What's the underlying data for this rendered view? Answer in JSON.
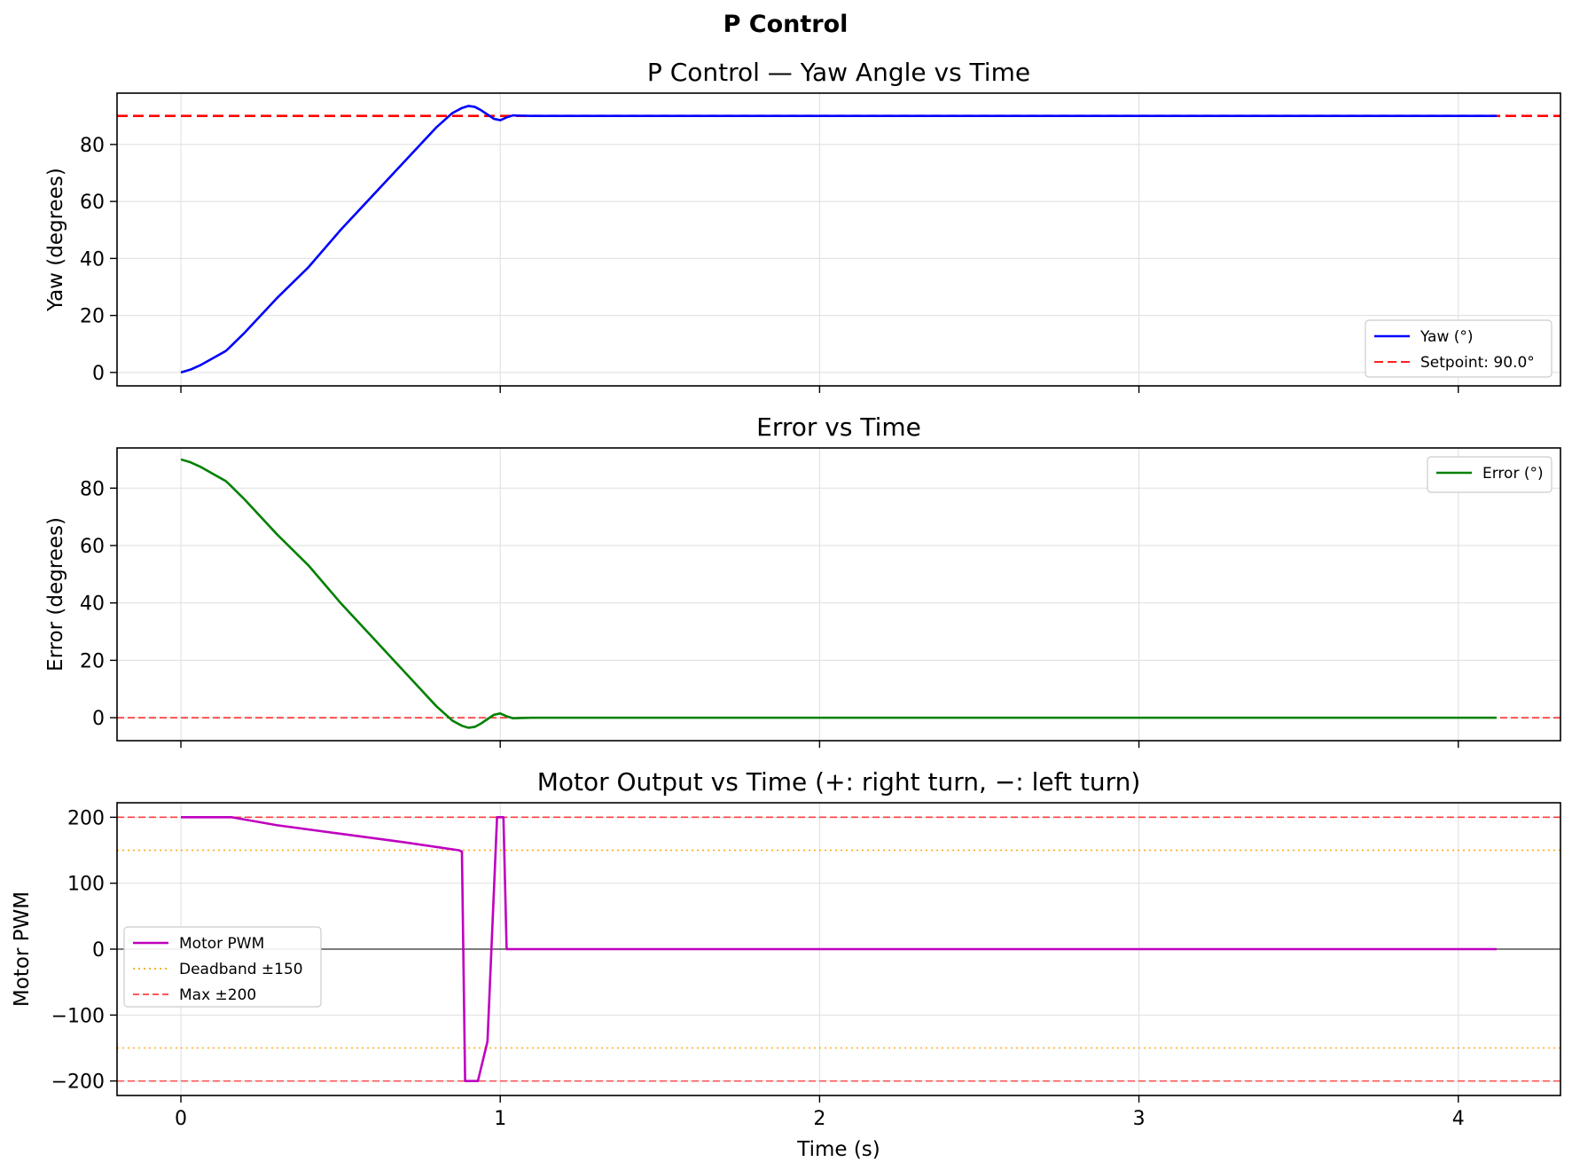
{
  "figure": {
    "suptitle": "P Control"
  },
  "chart_data": [
    {
      "type": "line",
      "title": "P Control — Yaw Angle vs Time",
      "xlabel": "",
      "ylabel": "Yaw (degrees)",
      "xlim": [
        -0.2,
        4.32
      ],
      "ylim": [
        -4.7,
        98
      ],
      "xticks": [
        0,
        1,
        2,
        3,
        4
      ],
      "yticks": [
        0,
        20,
        40,
        60,
        80
      ],
      "ytick_labels": [
        "0",
        "20",
        "40",
        "60",
        "80"
      ],
      "show_xtick_labels": false,
      "grid": true,
      "legend_position": "lower-right",
      "series": [
        {
          "name": "Yaw (°)",
          "color": "#0000ff",
          "style": "solid",
          "x": [
            0,
            0.03,
            0.06,
            0.1,
            0.14,
            0.15,
            0.2,
            0.3,
            0.4,
            0.5,
            0.6,
            0.7,
            0.8,
            0.85,
            0.88,
            0.9,
            0.92,
            0.94,
            0.96,
            0.98,
            1.0,
            1.02,
            1.04,
            1.06,
            1.1,
            1.5,
            2.0,
            2.5,
            3.0,
            3.5,
            4.0,
            4.12
          ],
          "y": [
            0,
            1,
            2.5,
            5,
            7.5,
            8.5,
            14,
            26,
            37,
            50,
            62,
            74,
            86,
            91,
            92.8,
            93.5,
            93.2,
            92,
            90.5,
            89,
            88.5,
            89.5,
            90.2,
            90.1,
            90,
            90,
            90,
            90,
            90,
            90,
            90,
            90
          ]
        },
        {
          "name": "Setpoint: 90.0°",
          "color": "#ff0000",
          "style": "dashed",
          "x": [
            -0.2,
            4.32
          ],
          "y": [
            90,
            90
          ]
        }
      ]
    },
    {
      "type": "line",
      "title": "Error vs Time",
      "xlabel": "",
      "ylabel": "Error (degrees)",
      "xlim": [
        -0.2,
        4.32
      ],
      "ylim": [
        -8,
        94
      ],
      "xticks": [
        0,
        1,
        2,
        3,
        4
      ],
      "yticks": [
        0,
        20,
        40,
        60,
        80
      ],
      "ytick_labels": [
        "0",
        "20",
        "40",
        "60",
        "80"
      ],
      "show_xtick_labels": false,
      "grid": true,
      "legend_position": "top-right",
      "series": [
        {
          "name": "Error (°)",
          "color": "#008000",
          "style": "solid",
          "x": [
            0,
            0.03,
            0.06,
            0.1,
            0.14,
            0.15,
            0.2,
            0.3,
            0.4,
            0.5,
            0.6,
            0.7,
            0.8,
            0.85,
            0.88,
            0.9,
            0.92,
            0.94,
            0.96,
            0.98,
            1.0,
            1.02,
            1.04,
            1.06,
            1.1,
            1.5,
            2.0,
            2.5,
            3.0,
            3.5,
            4.0,
            4.12
          ],
          "y": [
            90,
            89,
            87.5,
            85,
            82.5,
            81.5,
            76,
            64,
            53,
            40,
            28,
            16,
            4,
            -1,
            -2.8,
            -3.5,
            -3.2,
            -2,
            -0.5,
            1,
            1.5,
            0.5,
            -0.2,
            -0.1,
            0,
            0,
            0,
            0,
            0,
            0,
            0,
            0
          ]
        }
      ],
      "reference_lines": [
        {
          "y": 0,
          "color": "#ff0000",
          "style": "dashed"
        }
      ]
    },
    {
      "type": "line",
      "title": "Motor Output vs Time  (+: right turn, −: left turn)",
      "xlabel": "Time (s)",
      "ylabel": "Motor PWM",
      "xlim": [
        -0.2,
        4.32
      ],
      "ylim": [
        -222,
        222
      ],
      "xticks": [
        0,
        1,
        2,
        3,
        4
      ],
      "xtick_labels": [
        "0",
        "1",
        "2",
        "3",
        "4"
      ],
      "yticks": [
        -200,
        -100,
        0,
        100,
        200
      ],
      "ytick_labels": [
        "−200",
        "−100",
        "0",
        "100",
        "200"
      ],
      "show_xtick_labels": true,
      "grid": true,
      "legend_position": "center-left",
      "series": [
        {
          "name": "Motor PWM",
          "color": "#bf00bf",
          "style": "solid",
          "x": [
            0,
            0.16,
            0.3,
            0.5,
            0.7,
            0.87,
            0.88,
            0.89,
            0.93,
            0.96,
            0.99,
            1.0,
            1.01,
            1.02,
            4.12
          ],
          "y": [
            200,
            200,
            188,
            175,
            162,
            150,
            148,
            -200,
            -200,
            -140,
            200,
            200,
            200,
            0,
            0
          ]
        },
        {
          "name": "Deadband ±150",
          "color": "#ffa500",
          "style": "dotted",
          "x": [
            -0.2,
            4.32
          ],
          "y": [
            150,
            150
          ]
        },
        {
          "name": "Max ±200",
          "color": "#ff4040",
          "style": "dashed",
          "x": [
            -0.2,
            4.32
          ],
          "y": [
            200,
            200
          ]
        }
      ],
      "reference_lines": [
        {
          "y": -150,
          "color": "#ffa500",
          "style": "dotted"
        },
        {
          "y": -200,
          "color": "#ff4040",
          "style": "dashed"
        },
        {
          "y": 0,
          "color": "#000000",
          "style": "solid"
        }
      ]
    }
  ]
}
